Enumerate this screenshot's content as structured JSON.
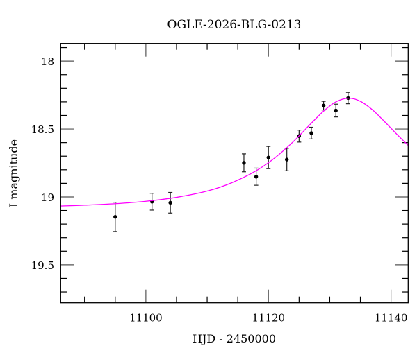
{
  "chart_data": {
    "type": "scatter",
    "title": "OGLE-2026-BLG-0213",
    "xlabel": "HJD - 2450000",
    "ylabel": "I magnitude",
    "xlim": [
      11086.1,
      11142.8
    ],
    "ylim": [
      17.87,
      19.78
    ],
    "y_inverted": true,
    "x_ticks": [
      11100,
      11120,
      11140
    ],
    "x_tick_labels": [
      "11100",
      "11120",
      "11140"
    ],
    "y_ticks": [
      18,
      18.5,
      19,
      19.5
    ],
    "y_tick_labels": [
      "18",
      "18.5",
      "19",
      "19.5"
    ],
    "grid": false,
    "series": [
      {
        "kind": "points-with-errorbars",
        "color": "#000000",
        "x": [
          11095,
          11101,
          11104,
          11116,
          11118,
          11120,
          11123,
          11125,
          11127,
          11129,
          11131,
          11133
        ],
        "y": [
          19.147,
          19.035,
          19.043,
          18.749,
          18.851,
          18.71,
          18.725,
          18.552,
          18.53,
          18.328,
          18.364,
          18.272
        ],
        "yerr": [
          0.108,
          0.062,
          0.076,
          0.066,
          0.063,
          0.082,
          0.083,
          0.044,
          0.043,
          0.032,
          0.047,
          0.042
        ]
      },
      {
        "kind": "model-curve",
        "color": "#ff00ff",
        "x": [
          11086,
          11090,
          11095,
          11100,
          11105,
          11110,
          11114,
          11118,
          11121,
          11124,
          11127,
          11129,
          11131,
          11133.1,
          11135,
          11137,
          11139,
          11141,
          11143
        ],
        "y": [
          19.067,
          19.061,
          19.05,
          19.032,
          19.003,
          18.957,
          18.896,
          18.807,
          18.714,
          18.595,
          18.457,
          18.368,
          18.3,
          18.273,
          18.296,
          18.36,
          18.448,
          18.541,
          18.629
        ]
      }
    ]
  }
}
